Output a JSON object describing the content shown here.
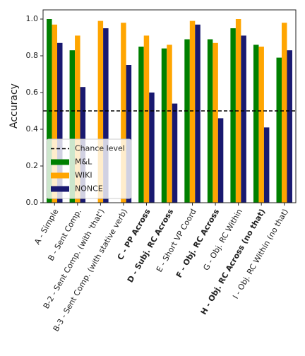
{
  "chart_data": {
    "type": "bar",
    "y_label": "Accuracy",
    "categories": [
      "A - Simple",
      "B - Sent Comp.",
      "B-2 - Sent Comp. (with 'that')",
      "B-3 - Sent Comp. (with stative verb)",
      "C - PP Across",
      "D - Subj. RC Across",
      "E - Short VP Coord",
      "F - Obj. RC Across",
      "G - Obj. RC Within",
      "H - Obj. RC Across (no that)",
      "I - Obj. RC Within (no that)"
    ],
    "bold_categories": [
      false,
      false,
      false,
      false,
      true,
      true,
      false,
      true,
      false,
      true,
      false
    ],
    "series": [
      {
        "name": "M&L",
        "color": "#008000",
        "values": [
          1.0,
          0.83,
          null,
          null,
          0.85,
          0.84,
          0.89,
          0.89,
          0.95,
          0.86,
          0.79
        ]
      },
      {
        "name": "WIKI",
        "color": "#ffa500",
        "values": [
          0.97,
          0.91,
          0.99,
          0.98,
          0.91,
          0.86,
          0.99,
          0.87,
          1.0,
          0.85,
          0.98
        ]
      },
      {
        "name": "NONCE",
        "color": "#191970",
        "values": [
          0.87,
          0.63,
          0.95,
          0.75,
          0.6,
          0.54,
          0.97,
          0.46,
          0.91,
          0.41,
          0.83
        ]
      }
    ],
    "reference_line": {
      "value": 0.5,
      "label": "Chance level",
      "color": "#000000",
      "style": "dashed"
    },
    "ylim": [
      0,
      1.05
    ],
    "yticks": [
      {
        "value": 0,
        "label": "0.0"
      },
      0.2,
      0.4,
      0.6,
      0.8,
      {
        "value": 1,
        "label": "1.0"
      }
    ],
    "legend": "lower left"
  }
}
